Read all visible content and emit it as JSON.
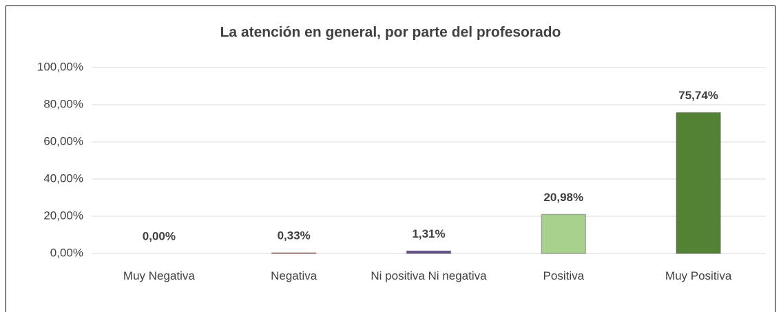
{
  "chart_data": {
    "type": "bar",
    "title": "La atención en general, por parte del profesorado",
    "categories": [
      "Muy Negativa",
      "Negativa",
      "Ni positiva Ni negativa",
      "Positiva",
      "Muy Positiva"
    ],
    "values": [
      0,
      0.33,
      1.31,
      20.98,
      75.74
    ],
    "value_labels": [
      "0,00%",
      "0,33%",
      "1,31%",
      "20,98%",
      "75,74%"
    ],
    "colors": [
      "#4472c4",
      "#c0504d",
      "#5f4b8b",
      "#a9d18e",
      "#548235"
    ],
    "ylim": [
      0,
      100
    ],
    "yticks": [
      {
        "value": 0,
        "label": "0,00%"
      },
      {
        "value": 20,
        "label": "20,00%"
      },
      {
        "value": 40,
        "label": "40,00%"
      },
      {
        "value": 60,
        "label": "60,00%"
      },
      {
        "value": 80,
        "label": "80,00%"
      },
      {
        "value": 100,
        "label": "100,00%"
      }
    ],
    "grid": true
  }
}
